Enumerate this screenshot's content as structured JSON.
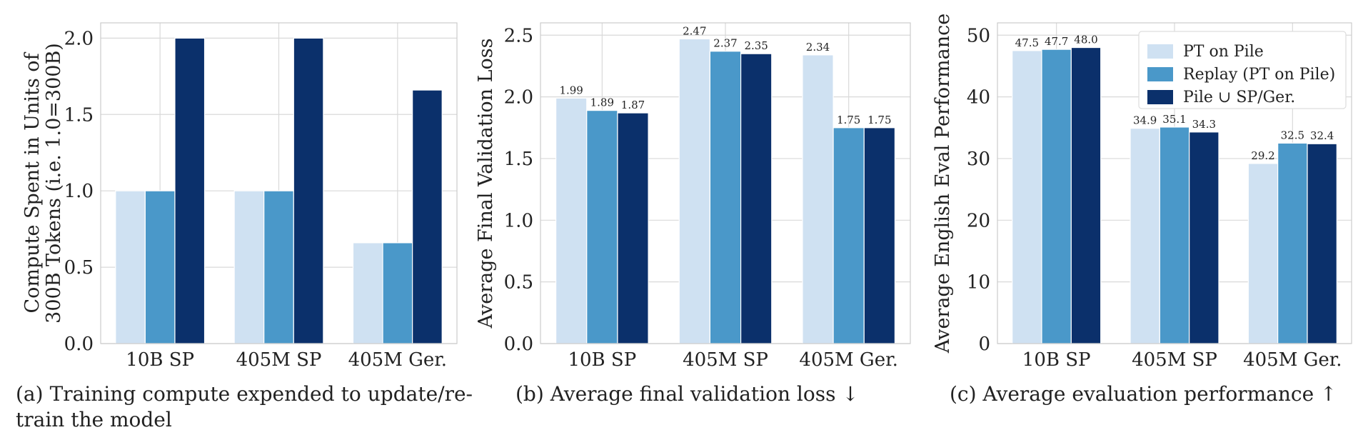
{
  "legend": {
    "entries": [
      "PT on Pile",
      "Replay (PT on Pile)",
      "Pile ∪ SP/Ger."
    ],
    "placement": "top-right"
  },
  "colors": {
    "series": [
      "#cfe1f2",
      "#4a98c9",
      "#0b306b"
    ],
    "grid": "#d9d9d9",
    "frame": "#cccccc"
  },
  "captions": {
    "a": "(a)  Training compute expended to update/re-train the model",
    "b": "(b) Average final validation loss ↓",
    "c": "(c) Average evaluation performance ↑"
  },
  "chart_data": [
    {
      "type": "bar",
      "categories": [
        "10B SP",
        "405M SP",
        "405M Ger."
      ],
      "series": [
        {
          "name": "PT on Pile",
          "values": [
            1.0,
            1.0,
            0.66
          ]
        },
        {
          "name": "Replay (PT on Pile)",
          "values": [
            1.0,
            1.0,
            0.66
          ]
        },
        {
          "name": "Pile ∪ SP/Ger.",
          "values": [
            2.0,
            2.0,
            1.66
          ]
        }
      ],
      "ylabel_lines": [
        "Compute Spent in Units of",
        "300B Tokens (i.e. 1.0=300B)"
      ],
      "ylim": [
        0,
        2.1
      ],
      "yticks": [
        "0.0",
        "0.5",
        "1.0",
        "1.5",
        "2.0"
      ],
      "grid": true,
      "data_labels": false
    },
    {
      "type": "bar",
      "categories": [
        "10B SP",
        "405M SP",
        "405M Ger."
      ],
      "series": [
        {
          "name": "PT on Pile",
          "values": [
            1.99,
            2.47,
            2.34
          ]
        },
        {
          "name": "Replay (PT on Pile)",
          "values": [
            1.89,
            2.37,
            1.75
          ]
        },
        {
          "name": "Pile ∪ SP/Ger.",
          "values": [
            1.87,
            2.35,
            1.75
          ]
        }
      ],
      "ylabel_lines": [
        "Average Final Validation Loss"
      ],
      "ylim": [
        0,
        2.6
      ],
      "yticks": [
        "0.0",
        "0.5",
        "1.0",
        "1.5",
        "2.0",
        "2.5"
      ],
      "grid": true,
      "data_labels": true
    },
    {
      "type": "bar",
      "categories": [
        "10B SP",
        "405M SP",
        "405M Ger."
      ],
      "series": [
        {
          "name": "PT on Pile",
          "values": [
            47.5,
            34.9,
            29.2
          ]
        },
        {
          "name": "Replay (PT on Pile)",
          "values": [
            47.7,
            35.1,
            32.5
          ]
        },
        {
          "name": "Pile ∪ SP/Ger.",
          "values": [
            48.0,
            34.3,
            32.4
          ]
        }
      ],
      "ylabel_lines": [
        "Average English Eval Performance"
      ],
      "ylim": [
        0,
        52
      ],
      "yticks": [
        "0",
        "10",
        "20",
        "30",
        "40",
        "50"
      ],
      "grid": true,
      "data_labels": true,
      "legend": true
    }
  ]
}
